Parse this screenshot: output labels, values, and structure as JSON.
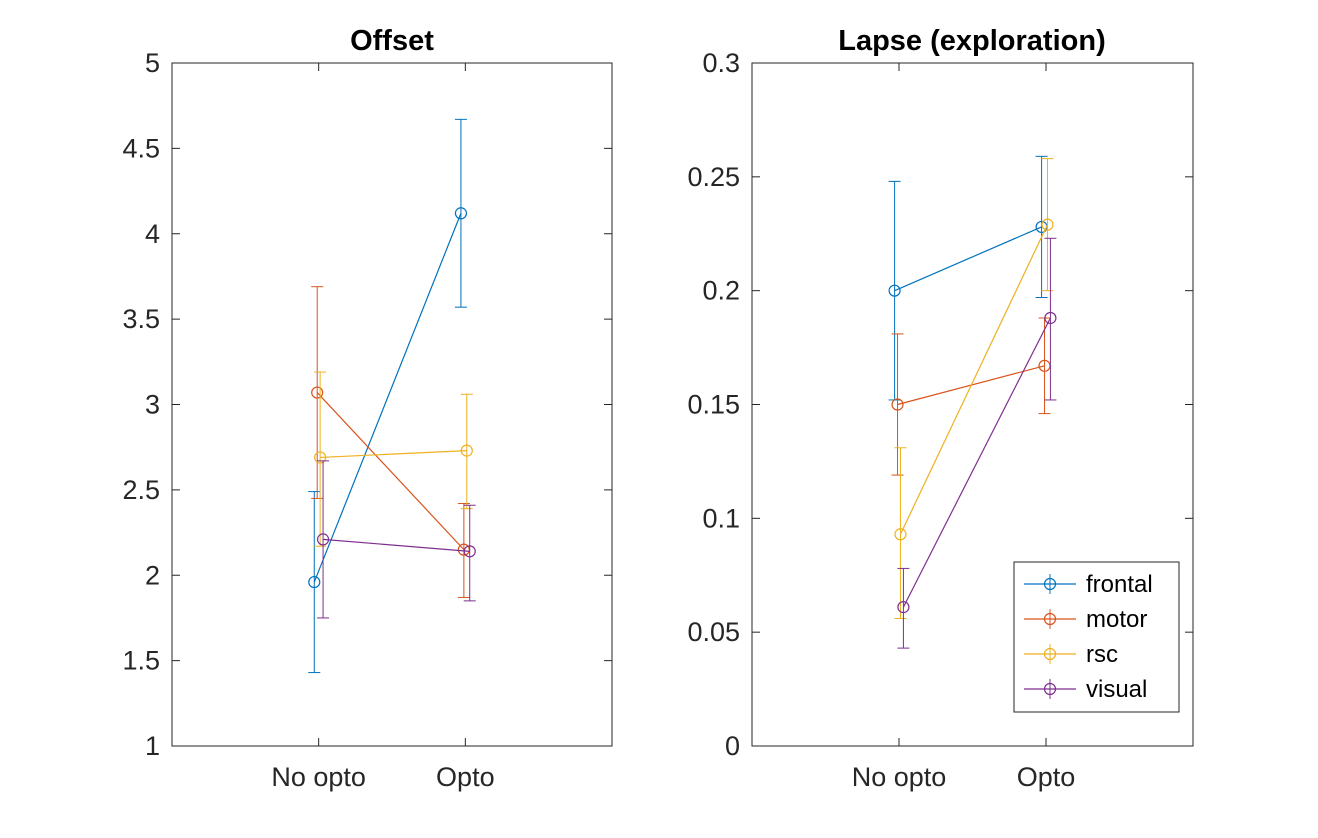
{
  "chart_data": [
    {
      "type": "line",
      "title": "Offset",
      "categories": [
        "No opto",
        "Opto"
      ],
      "ylim": [
        1,
        5
      ],
      "yticks": [
        "1",
        "1.5",
        "2",
        "2.5",
        "3",
        "3.5",
        "4",
        "4.5",
        "5"
      ],
      "series": [
        {
          "name": "frontal",
          "color": "#0072BD",
          "values": [
            1.96,
            4.12
          ],
          "err_low": [
            1.43,
            3.57
          ],
          "err_high": [
            2.49,
            4.67
          ]
        },
        {
          "name": "motor",
          "color": "#D95319",
          "values": [
            3.07,
            2.15
          ],
          "err_low": [
            2.45,
            1.87
          ],
          "err_high": [
            3.69,
            2.42
          ]
        },
        {
          "name": "rsc",
          "color": "#EDB120",
          "values": [
            2.69,
            2.73
          ],
          "err_low": [
            2.17,
            2.39
          ],
          "err_high": [
            3.19,
            3.06
          ]
        },
        {
          "name": "visual",
          "color": "#7E2F8E",
          "values": [
            2.21,
            2.14
          ],
          "err_low": [
            1.75,
            1.85
          ],
          "err_high": [
            2.67,
            2.41
          ]
        }
      ]
    },
    {
      "type": "line",
      "title": "Lapse (exploration)",
      "categories": [
        "No opto",
        "Opto"
      ],
      "ylim": [
        0,
        0.3
      ],
      "yticks": [
        "0",
        "0.05",
        "0.1",
        "0.15",
        "0.2",
        "0.25",
        "0.3"
      ],
      "legend": "bottom-right",
      "series": [
        {
          "name": "frontal",
          "color": "#0072BD",
          "values": [
            0.2,
            0.228
          ],
          "err_low": [
            0.152,
            0.197
          ],
          "err_high": [
            0.248,
            0.259
          ]
        },
        {
          "name": "motor",
          "color": "#D95319",
          "values": [
            0.15,
            0.167
          ],
          "err_low": [
            0.119,
            0.146
          ],
          "err_high": [
            0.181,
            0.188
          ]
        },
        {
          "name": "rsc",
          "color": "#EDB120",
          "values": [
            0.093,
            0.229
          ],
          "err_low": [
            0.056,
            0.2
          ],
          "err_high": [
            0.131,
            0.258
          ]
        },
        {
          "name": "visual",
          "color": "#7E2F8E",
          "values": [
            0.061,
            0.188
          ],
          "err_low": [
            0.043,
            0.152
          ],
          "err_high": [
            0.078,
            0.223
          ]
        }
      ]
    }
  ]
}
